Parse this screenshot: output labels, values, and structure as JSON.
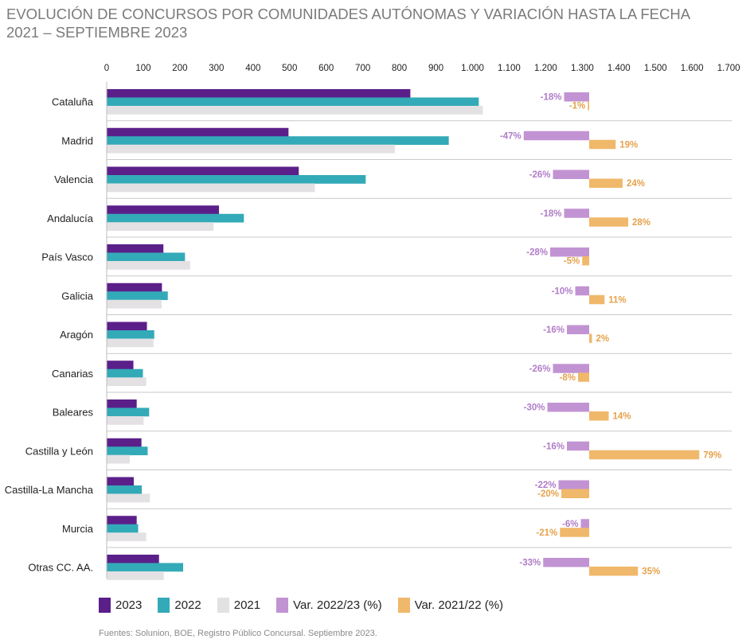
{
  "title_line1": "EVOLUCIÓN DE CONCURSOS POR COMUNIDADES AUTÓNOMAS Y VARIACIÓN HASTA LA FECHA",
  "title_line2": "2021 – SEPTIEMBRE 2023",
  "source": "Fuentes: Solunion, BOE, Registro Público Concursal. Septiembre 2023.",
  "colors": {
    "y2023": "#5b1f8a",
    "y2022": "#33aab8",
    "y2021": "#e3e1e3",
    "var2223": "#c293d3",
    "var2122": "#f0b86a",
    "var2223_text": "#b07cc8",
    "var2122_text": "#e6a24c"
  },
  "legend": [
    {
      "label": "2023",
      "color": "#5b1f8a"
    },
    {
      "label": "2022",
      "color": "#33aab8"
    },
    {
      "label": "2021",
      "color": "#e3e1e3"
    },
    {
      "label": "Var. 2022/23 (%)",
      "color": "#c293d3"
    },
    {
      "label": "Var. 2021/22 (%)",
      "color": "#f0b86a"
    }
  ],
  "chart_data": {
    "type": "bar",
    "orientation": "horizontal",
    "xlim": [
      0,
      1700
    ],
    "x_ticks": [
      "0",
      "100",
      "200",
      "300",
      "400",
      "500",
      "600",
      "700",
      "800",
      "900",
      "1.000",
      "1.100",
      "1.200",
      "1.300",
      "1.400",
      "1.500",
      "1.600",
      "1.700"
    ],
    "grid": false,
    "legend_position": "bottom",
    "categories": [
      "Cataluña",
      "Madrid",
      "Valencia",
      "Andalucía",
      "País Vasco",
      "Galicia",
      "Aragón",
      "Canarias",
      "Baleares",
      "Castilla y León",
      "Castilla-La Mancha",
      "Murcia",
      "Otras CC. AA."
    ],
    "series": [
      {
        "name": "2023",
        "values": [
          830,
          497,
          525,
          307,
          155,
          151,
          110,
          73,
          82,
          95,
          74,
          82,
          143
        ]
      },
      {
        "name": "2022",
        "values": [
          1017,
          935,
          708,
          375,
          214,
          167,
          130,
          99,
          116,
          112,
          96,
          86,
          209
        ]
      },
      {
        "name": "2021",
        "values": [
          1028,
          788,
          569,
          292,
          228,
          150,
          128,
          108,
          101,
          63,
          118,
          108,
          156
        ]
      }
    ],
    "variation_series": [
      {
        "name": "Var. 2022/23 (%)",
        "values": [
          -18,
          -47,
          -26,
          -18,
          -28,
          -10,
          -16,
          -26,
          -30,
          -16,
          -22,
          -6,
          -33
        ],
        "labels": [
          "-18%",
          "-47%",
          "-26%",
          "-18%",
          "-28%",
          "-10%",
          "-16%",
          "-26%",
          "-30%",
          "-16%",
          "-22%",
          "-6%",
          "-33%"
        ]
      },
      {
        "name": "Var. 2021/22 (%)",
        "values": [
          -1,
          19,
          24,
          28,
          -5,
          11,
          2,
          -8,
          14,
          79,
          -20,
          -21,
          35
        ],
        "labels": [
          "-1%",
          "19%",
          "24%",
          "28%",
          "-5%",
          "11%",
          "2%",
          "-8%",
          "14%",
          "79%",
          "-20%",
          "-21%",
          "35%"
        ]
      }
    ]
  }
}
